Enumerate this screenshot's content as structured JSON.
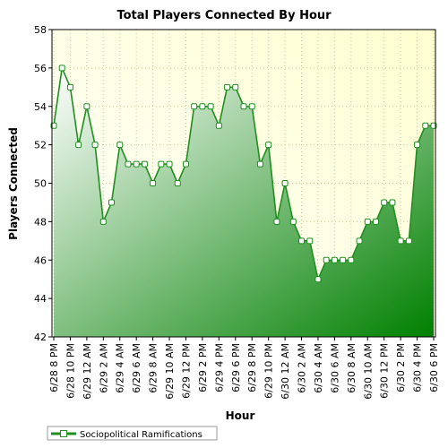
{
  "chart_data": {
    "type": "area",
    "title": "Total Players Connected By Hour",
    "xlabel": "Hour",
    "ylabel": "Players Connected",
    "ylim": [
      42,
      58
    ],
    "yticks": [
      42,
      44,
      46,
      48,
      50,
      52,
      54,
      56,
      58
    ],
    "x_tick_labels": [
      "6/28 8 PM",
      "6/28 10 PM",
      "6/29 12 AM",
      "6/29 2 AM",
      "6/29 4 AM",
      "6/29 6 AM",
      "6/29 8 AM",
      "6/29 10 AM",
      "6/29 12 PM",
      "6/29 2 PM",
      "6/29 4 PM",
      "6/29 6 PM",
      "6/29 8 PM",
      "6/29 10 PM",
      "6/30 12 AM",
      "6/30 2 AM",
      "6/30 4 AM",
      "6/30 6 AM",
      "6/30 8 AM",
      "6/30 10 AM",
      "6/30 12 PM",
      "6/30 2 PM",
      "6/30 4 PM",
      "6/30 6 PM"
    ],
    "grid": true,
    "legend_position": "bottom-left",
    "series": [
      {
        "name": "Sociopolitical Ramifications",
        "color": "#1f8f1f",
        "values": [
          53,
          56,
          55,
          52,
          54,
          52,
          48,
          49,
          52,
          51,
          51,
          51,
          50,
          51,
          51,
          50,
          51,
          54,
          54,
          54,
          53,
          55,
          55,
          54,
          54,
          51,
          52,
          48,
          50,
          48,
          47,
          47,
          45,
          46,
          46,
          46,
          46,
          47,
          48,
          48,
          49,
          49,
          47,
          47,
          52,
          53,
          53
        ]
      }
    ]
  },
  "colors": {
    "plot_background_top": "#ffffd0",
    "plot_background_bottom": "#ffffff",
    "area_top": "#ffffff",
    "area_bottom": "#008000",
    "line": "#1f8f1f",
    "gridline": "#c8c8a0"
  }
}
